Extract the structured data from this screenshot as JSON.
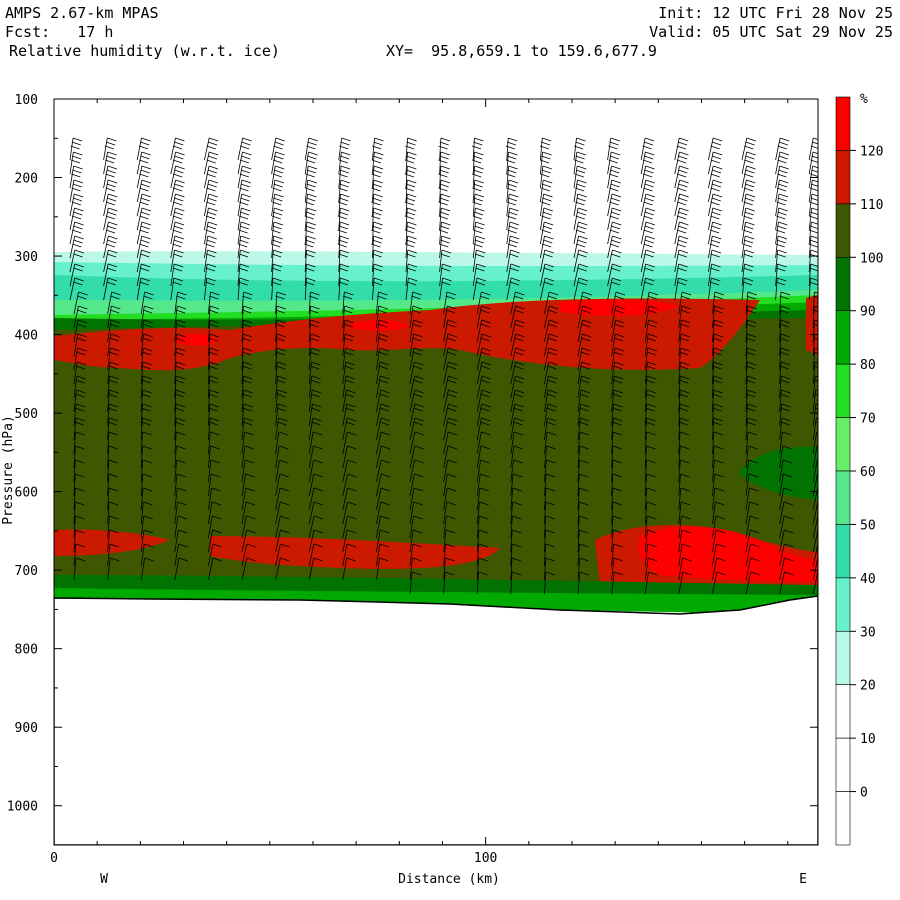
{
  "header": {
    "model": "AMPS 2.67-km MPAS",
    "forecast": "Fcst:   17 h",
    "field": "Relative humidity (w.r.t. ice)",
    "xy": "XY=  95.8,659.1 to 159.6,677.9",
    "init": "Init: 12 UTC Fri 28 Nov 25",
    "valid": "Valid: 05 UTC Sat 29 Nov 25"
  },
  "chart_data": {
    "type": "heatmap",
    "title": "Relative humidity (w.r.t. ice)",
    "xlabel": "Distance (km)",
    "ylabel": "Pressure (hPa)",
    "x_range": [
      0,
      177
    ],
    "y_range": [
      1050,
      100
    ],
    "x_ticks": [
      "0",
      "100"
    ],
    "x_tick_values": [
      0,
      100
    ],
    "x_end_labels": [
      "W",
      "E"
    ],
    "y_ticks": [
      "100",
      "200",
      "300",
      "400",
      "500",
      "600",
      "700",
      "800",
      "900",
      "1000"
    ],
    "y_tick_values": [
      100,
      200,
      300,
      400,
      500,
      600,
      700,
      800,
      900,
      1000
    ],
    "colorbar": {
      "unit": "%",
      "levels": [
        "120",
        "110",
        "100",
        "90",
        "80",
        "70",
        "60",
        "50",
        "40",
        "30",
        "20",
        "10",
        "0"
      ],
      "colors": [
        "#ff0000",
        "#cc1a00",
        "#3f5700",
        "#007300",
        "#00aa00",
        "#22dd22",
        "#66ee66",
        "#55e88a",
        "#33ddaa",
        "#66f0cc",
        "#bbf8e8",
        "#ffffff",
        "#ffffff",
        "#ffffff"
      ]
    },
    "terrain_pressure_hPa": [
      735,
      738,
      740,
      745,
      748,
      755,
      757,
      752,
      740
    ],
    "terrain_x_km": [
      0,
      30,
      60,
      90,
      110,
      130,
      150,
      165,
      177
    ],
    "wind_barbs": "black wind barbs plotted at column intervals from ~190 hPa to surface"
  }
}
